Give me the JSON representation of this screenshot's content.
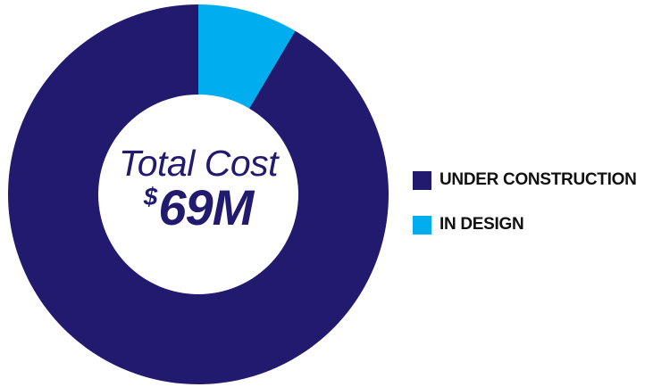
{
  "chart_data": {
    "type": "pie",
    "variant": "donut",
    "slices": [
      {
        "name": "UNDER CONSTRUCTION",
        "share_percent": 91.5,
        "color": "#221a6e"
      },
      {
        "name": "IN DESIGN",
        "share_percent": 8.5,
        "color": "#00aeef"
      }
    ],
    "center": {
      "title": "Total Cost",
      "currency": "$",
      "value": "69M"
    },
    "legend_position": "right"
  }
}
